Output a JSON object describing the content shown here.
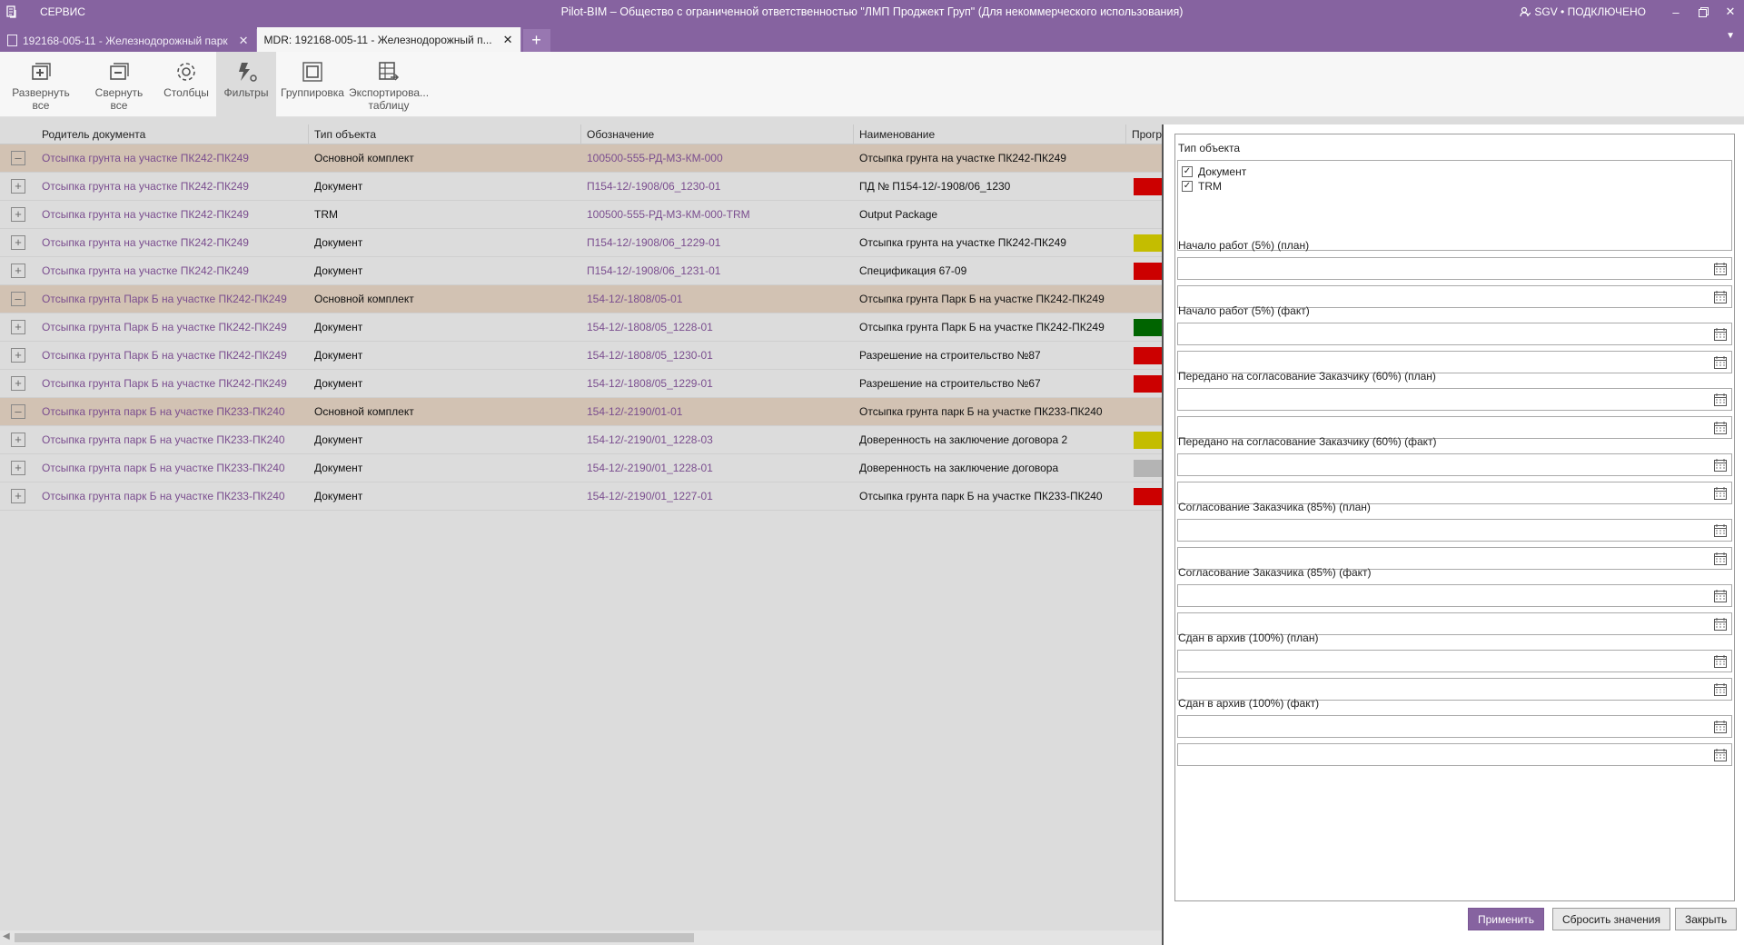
{
  "titlebar": {
    "menu": "СЕРВИС",
    "title": "Pilot-BIM – Общество с ограниченной ответственностью \"ЛМП Проджект Груп\" (Для некоммерческого использования)",
    "status": "SGV • ПОДКЛЮЧЕНО"
  },
  "tabs": [
    {
      "label": "192168-005-11 - Железнодорожный парк"
    },
    {
      "label": "MDR: 192168-005-11 - Железнодорожный п..."
    }
  ],
  "toolbar": {
    "expand_all": "Развернуть все",
    "collapse_all": "Свернуть все",
    "columns": "Столбцы",
    "filters": "Фильтры",
    "grouping": "Группировка",
    "export_line1": "Экспортирова...",
    "export_line2": "таблицу"
  },
  "grid": {
    "headers": [
      "Родитель документа",
      "Тип объекта",
      "Обозначение",
      "Наименование",
      "Прогр"
    ],
    "rows": [
      {
        "group": true,
        "parent": "Отсыпка грунта на участке ПК242-ПК249",
        "type": "Основной комплект",
        "code": "100500-555-РД-МЗ-КМ-000",
        "name": "Отсыпка грунта на участке ПК242-ПК249",
        "progress": ""
      },
      {
        "group": false,
        "parent": "Отсыпка грунта на участке ПК242-ПК249",
        "type": "Документ",
        "code": "П154-12/-1908/06_1230-01",
        "name": "ПД № П154-12/-1908/06_1230",
        "progress": "#cc0000"
      },
      {
        "group": false,
        "parent": "Отсыпка грунта на участке ПК242-ПК249",
        "type": "TRM",
        "code": "100500-555-РД-МЗ-КМ-000-TRM",
        "name": "Output Package",
        "progress": ""
      },
      {
        "group": false,
        "parent": "Отсыпка грунта на участке ПК242-ПК249",
        "type": "Документ",
        "code": "П154-12/-1908/06_1229-01",
        "name": "Отсыпка грунта на участке ПК242-ПК249",
        "progress": "#c4bd00"
      },
      {
        "group": false,
        "parent": "Отсыпка грунта на участке ПК242-ПК249",
        "type": "Документ",
        "code": "П154-12/-1908/06_1231-01",
        "name": "Спецификация 67-09",
        "progress": "#cc0000"
      },
      {
        "group": true,
        "parent": "Отсыпка грунта Парк Б на участке ПК242-ПК249",
        "type": "Основной комплект",
        "code": "154-12/-1808/05-01",
        "name": "Отсыпка грунта Парк Б на участке ПК242-ПК249",
        "progress": ""
      },
      {
        "group": false,
        "parent": "Отсыпка грунта Парк Б на участке ПК242-ПК249",
        "type": "Документ",
        "code": "154-12/-1808/05_1228-01",
        "name": "Отсыпка грунта Парк Б на участке ПК242-ПК249",
        "progress": "#006400"
      },
      {
        "group": false,
        "parent": "Отсыпка грунта Парк Б на участке ПК242-ПК249",
        "type": "Документ",
        "code": "154-12/-1808/05_1230-01",
        "name": "Разрешение на строительство №87",
        "progress": "#cc0000"
      },
      {
        "group": false,
        "parent": "Отсыпка грунта Парк Б на участке ПК242-ПК249",
        "type": "Документ",
        "code": "154-12/-1808/05_1229-01",
        "name": "Разрешение на строительство №67",
        "progress": "#cc0000"
      },
      {
        "group": true,
        "parent": "Отсыпка грунта парк Б на участке ПК233-ПК240",
        "type": "Основной комплект",
        "code": "154-12/-2190/01-01",
        "name": "Отсыпка грунта парк Б на участке ПК233-ПК240",
        "progress": ""
      },
      {
        "group": false,
        "parent": "Отсыпка грунта парк Б на участке ПК233-ПК240",
        "type": "Документ",
        "code": "154-12/-2190/01_1228-03",
        "name": "Доверенность на заключение договора 2",
        "progress": "#c4bd00"
      },
      {
        "group": false,
        "parent": "Отсыпка грунта парк Б на участке ПК233-ПК240",
        "type": "Документ",
        "code": "154-12/-2190/01_1228-01",
        "name": "Доверенность на заключение договора",
        "progress": "#b4b4b4"
      },
      {
        "group": false,
        "parent": "Отсыпка грунта парк Б на участке ПК233-ПК240",
        "type": "Документ",
        "code": "154-12/-2190/01_1227-01",
        "name": "Отсыпка грунта парк Б на участке ПК233-ПК240",
        "progress": "#cc0000"
      }
    ]
  },
  "filter": {
    "type_label": "Тип объекта",
    "type_options": [
      {
        "label": "Документ",
        "checked": true
      },
      {
        "label": "TRM",
        "checked": true
      }
    ],
    "date_labels": [
      "Начало работ (5%) (план)",
      "Начало работ (5%) (факт)",
      "Передано на согласование Заказчику (60%) (план)",
      "Передано на согласование Заказчику (60%) (факт)",
      "Согласование Заказчика (85%) (план)",
      "Согласование Заказчика (85%) (факт)",
      "Сдан в архив (100%) (план)",
      "Сдан в архив (100%) (факт)"
    ],
    "apply": "Применить",
    "reset": "Сбросить значения",
    "close": "Закрыть"
  },
  "colors": {
    "accent": "#8663a0",
    "group_row": "#d2c2b3",
    "link_text": "#7b4e8f"
  }
}
